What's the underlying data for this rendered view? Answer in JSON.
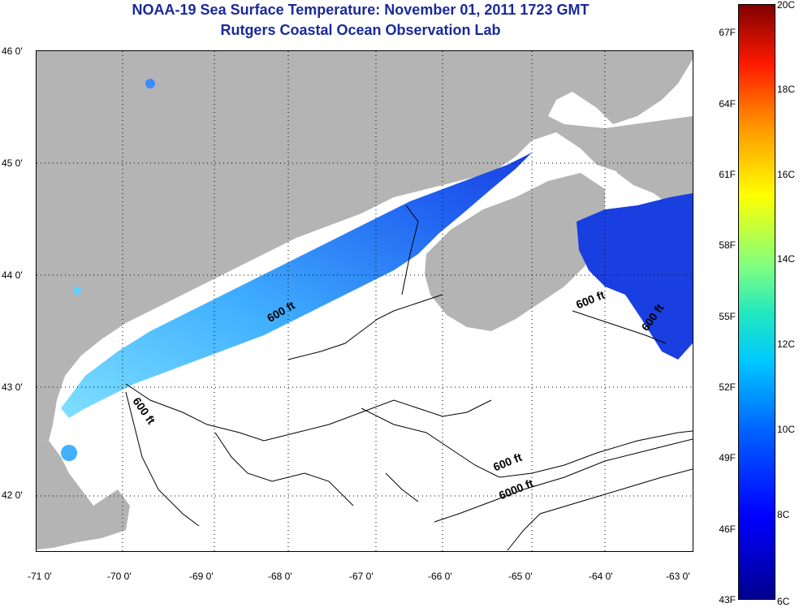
{
  "title": {
    "line1": "NOAA-19 Sea Surface Temperature:  November 01, 2011 1723 GMT",
    "line2": "Rutgers Coastal Ocean Observation Lab"
  },
  "axes": {
    "lat_ticks": [
      "46 0'",
      "45 0'",
      "44 0'",
      "43 0'",
      "42 0'"
    ],
    "lon_ticks": [
      "-71 0'",
      "-70 0'",
      "-69 0'",
      "-68 0'",
      "-67 0'",
      "-66 0'",
      "-65 0'",
      "-64 0'",
      "-63 0'"
    ],
    "lat_range": [
      41.5,
      46.0
    ],
    "lon_range": [
      -71.0,
      -63.0
    ]
  },
  "colorbar": {
    "fahrenheit": [
      "67F",
      "64F",
      "61F",
      "58F",
      "55F",
      "52F",
      "49F",
      "46F",
      "43F"
    ],
    "celsius": [
      "20C",
      "18C",
      "16C",
      "14C",
      "12C",
      "10C",
      "8C",
      "6C"
    ],
    "range_c": [
      6,
      20
    ]
  },
  "contour_labels": [
    "600 ft",
    "600 ft",
    "600 ft",
    "600 ft",
    "6000 ft",
    "600 ft"
  ],
  "colors": {
    "land": "#b4b4b4",
    "title": "#1a2a9a",
    "warm_sst": "#5fc8ff",
    "cool_sst": "#1a3fe0"
  }
}
